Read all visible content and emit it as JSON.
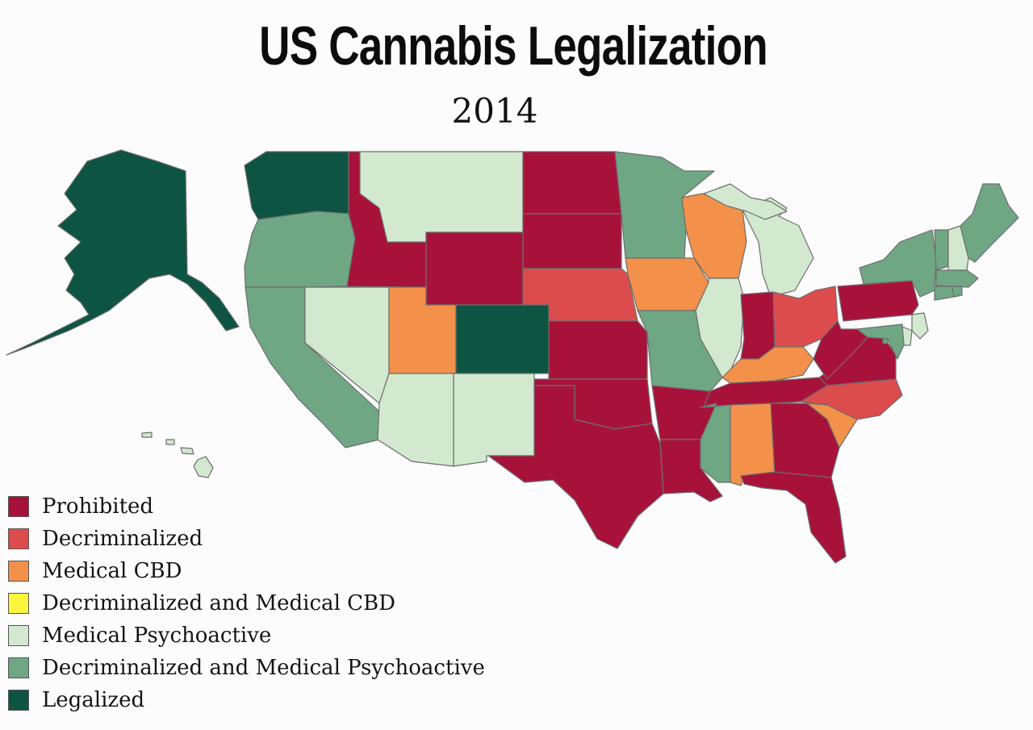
{
  "title": "US Cannabis Legalization",
  "subtitle": "2014",
  "legend": [
    {
      "key": "prohibited",
      "label": "Prohibited",
      "color": "#a8123a"
    },
    {
      "key": "decrim",
      "label": "Decriminalized",
      "color": "#dd4c4c"
    },
    {
      "key": "cbd",
      "label": "Medical CBD",
      "color": "#f3914a"
    },
    {
      "key": "decrim_cbd",
      "label": "Decriminalized and Medical CBD",
      "color": "#fbf53c"
    },
    {
      "key": "medical",
      "label": "Medical Psychoactive",
      "color": "#d2e9cf"
    },
    {
      "key": "decrim_medical",
      "label": "Decriminalized and Medical Psychoactive",
      "color": "#6fa785"
    },
    {
      "key": "legal",
      "label": "Legalized",
      "color": "#0d5443"
    }
  ],
  "states": {
    "AK": "legal",
    "HI": "medical",
    "WA": "legal",
    "OR": "decrim_medical",
    "CA": "decrim_medical",
    "NV": "medical",
    "ID": "prohibited",
    "MT": "medical",
    "WY": "prohibited",
    "UT": "cbd",
    "AZ": "medical",
    "CO": "legal",
    "NM": "medical",
    "ND": "prohibited",
    "SD": "prohibited",
    "NE": "decrim",
    "KS": "prohibited",
    "OK": "prohibited",
    "TX": "prohibited",
    "MN": "decrim_medical",
    "IA": "cbd",
    "MO": "decrim_medical",
    "AR": "prohibited",
    "LA": "prohibited",
    "WI": "cbd",
    "IL": "medical",
    "MI": "medical",
    "IN": "prohibited",
    "OH": "decrim",
    "KY": "cbd",
    "TN": "prohibited",
    "MS": "decrim_medical",
    "AL": "cbd",
    "GA": "prohibited",
    "FL": "prohibited",
    "SC": "cbd",
    "NC": "decrim",
    "VA": "prohibited",
    "WV": "prohibited",
    "PA": "prohibited",
    "NY": "decrim_medical",
    "VT": "decrim_medical",
    "NH": "medical",
    "ME": "decrim_medical",
    "MA": "decrim_medical",
    "CT": "decrim_medical",
    "RI": "decrim_medical",
    "NJ": "medical",
    "DE": "medical",
    "MD": "decrim_medical",
    "DC": "decrim_medical"
  }
}
